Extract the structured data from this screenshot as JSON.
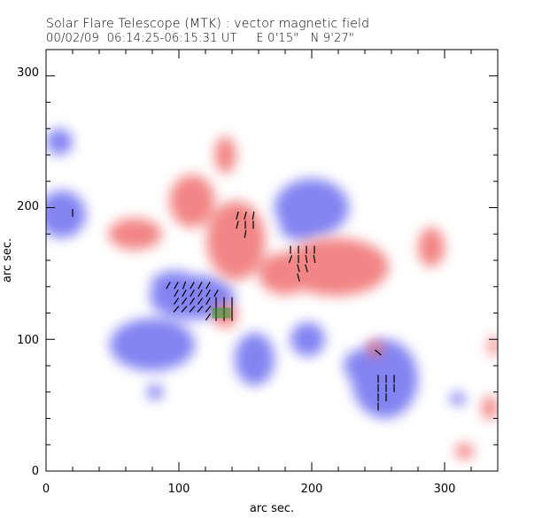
{
  "title": "Solar Flare Telescope (MTK) : vector magnetic field",
  "subtitle": "00/02/09  06:14:25-06:15:31 UT     E 0'15\"   N 9'27\"",
  "chart_data": {
    "type": "heatmap",
    "xlabel": "arc sec.",
    "ylabel": "arc sec.",
    "xlim": [
      0,
      340
    ],
    "ylim": [
      0,
      320
    ],
    "xticks": [
      0,
      100,
      200,
      300
    ],
    "yticks": [
      0,
      100,
      200,
      300
    ],
    "minor_tick_step": 20,
    "grid": false,
    "colors": {
      "positive": "#f07070",
      "negative": "#6e6ef0",
      "vector": "#000000",
      "highlight": "#2a9a2a"
    },
    "positive_regions": [
      {
        "x": 143,
        "y": 175,
        "rx": 22,
        "ry": 30
      },
      {
        "x": 110,
        "y": 205,
        "rx": 17,
        "ry": 20
      },
      {
        "x": 135,
        "y": 240,
        "rx": 8,
        "ry": 14
      },
      {
        "x": 67,
        "y": 180,
        "rx": 20,
        "ry": 12
      },
      {
        "x": 218,
        "y": 155,
        "rx": 40,
        "ry": 22
      },
      {
        "x": 180,
        "y": 150,
        "rx": 20,
        "ry": 16
      },
      {
        "x": 135,
        "y": 118,
        "rx": 9,
        "ry": 9
      },
      {
        "x": 248,
        "y": 93,
        "rx": 6,
        "ry": 6
      },
      {
        "x": 315,
        "y": 15,
        "rx": 7,
        "ry": 6
      },
      {
        "x": 334,
        "y": 48,
        "rx": 6,
        "ry": 9
      },
      {
        "x": 337,
        "y": 95,
        "rx": 4,
        "ry": 8
      },
      {
        "x": 290,
        "y": 170,
        "rx": 10,
        "ry": 15
      }
    ],
    "negative_regions": [
      {
        "x": 200,
        "y": 200,
        "rx": 28,
        "ry": 22
      },
      {
        "x": 192,
        "y": 185,
        "rx": 16,
        "ry": 10
      },
      {
        "x": 110,
        "y": 132,
        "rx": 32,
        "ry": 17
      },
      {
        "x": 97,
        "y": 142,
        "rx": 18,
        "ry": 10
      },
      {
        "x": 80,
        "y": 96,
        "rx": 32,
        "ry": 20
      },
      {
        "x": 197,
        "y": 100,
        "rx": 13,
        "ry": 13
      },
      {
        "x": 255,
        "y": 70,
        "rx": 25,
        "ry": 30
      },
      {
        "x": 236,
        "y": 80,
        "rx": 12,
        "ry": 12
      },
      {
        "x": 157,
        "y": 85,
        "rx": 15,
        "ry": 20
      },
      {
        "x": 12,
        "y": 195,
        "rx": 18,
        "ry": 18
      },
      {
        "x": 10,
        "y": 250,
        "rx": 10,
        "ry": 10
      },
      {
        "x": 82,
        "y": 60,
        "rx": 6,
        "ry": 6
      },
      {
        "x": 310,
        "y": 55,
        "rx": 6,
        "ry": 5
      }
    ],
    "vectors": [
      {
        "x": 20,
        "y": 196,
        "angle": 0
      },
      {
        "x": 144,
        "y": 194,
        "angle": -15
      },
      {
        "x": 150,
        "y": 194,
        "angle": -15
      },
      {
        "x": 156,
        "y": 194,
        "angle": -10
      },
      {
        "x": 144,
        "y": 187,
        "angle": -15
      },
      {
        "x": 150,
        "y": 187,
        "angle": 0
      },
      {
        "x": 156,
        "y": 187,
        "angle": 0
      },
      {
        "x": 150,
        "y": 180,
        "angle": -10
      },
      {
        "x": 184,
        "y": 168,
        "angle": 0
      },
      {
        "x": 190,
        "y": 168,
        "angle": 0
      },
      {
        "x": 196,
        "y": 168,
        "angle": 0
      },
      {
        "x": 202,
        "y": 168,
        "angle": 0
      },
      {
        "x": 184,
        "y": 161,
        "angle": -20
      },
      {
        "x": 190,
        "y": 161,
        "angle": 0
      },
      {
        "x": 196,
        "y": 161,
        "angle": 10
      },
      {
        "x": 202,
        "y": 161,
        "angle": 10
      },
      {
        "x": 190,
        "y": 154,
        "angle": 15
      },
      {
        "x": 196,
        "y": 154,
        "angle": 15
      },
      {
        "x": 190,
        "y": 147,
        "angle": 15
      },
      {
        "x": 92,
        "y": 141,
        "angle": -30
      },
      {
        "x": 98,
        "y": 141,
        "angle": -30
      },
      {
        "x": 104,
        "y": 141,
        "angle": -20
      },
      {
        "x": 110,
        "y": 141,
        "angle": -30
      },
      {
        "x": 116,
        "y": 141,
        "angle": -30
      },
      {
        "x": 122,
        "y": 141,
        "angle": -30
      },
      {
        "x": 98,
        "y": 135,
        "angle": -30
      },
      {
        "x": 104,
        "y": 135,
        "angle": -30
      },
      {
        "x": 110,
        "y": 135,
        "angle": -30
      },
      {
        "x": 116,
        "y": 135,
        "angle": -30
      },
      {
        "x": 122,
        "y": 135,
        "angle": -30
      },
      {
        "x": 128,
        "y": 135,
        "angle": -30
      },
      {
        "x": 98,
        "y": 129,
        "angle": -35
      },
      {
        "x": 104,
        "y": 129,
        "angle": -35
      },
      {
        "x": 110,
        "y": 129,
        "angle": -35
      },
      {
        "x": 116,
        "y": 129,
        "angle": -35
      },
      {
        "x": 122,
        "y": 129,
        "angle": -30
      },
      {
        "x": 128,
        "y": 129,
        "angle": 0
      },
      {
        "x": 134,
        "y": 129,
        "angle": 0
      },
      {
        "x": 140,
        "y": 129,
        "angle": 0
      },
      {
        "x": 98,
        "y": 123,
        "angle": -40
      },
      {
        "x": 104,
        "y": 123,
        "angle": -40
      },
      {
        "x": 110,
        "y": 123,
        "angle": -40
      },
      {
        "x": 116,
        "y": 123,
        "angle": -40
      },
      {
        "x": 122,
        "y": 123,
        "angle": -40
      },
      {
        "x": 128,
        "y": 123,
        "angle": 0
      },
      {
        "x": 134,
        "y": 123,
        "angle": 0
      },
      {
        "x": 140,
        "y": 123,
        "angle": 0
      },
      {
        "x": 122,
        "y": 117,
        "angle": -35
      },
      {
        "x": 128,
        "y": 117,
        "angle": 0
      },
      {
        "x": 134,
        "y": 117,
        "angle": 0
      },
      {
        "x": 140,
        "y": 117,
        "angle": 0
      },
      {
        "x": 250,
        "y": 90,
        "angle": 50
      },
      {
        "x": 250,
        "y": 70,
        "angle": 0
      },
      {
        "x": 256,
        "y": 70,
        "angle": 0
      },
      {
        "x": 262,
        "y": 70,
        "angle": 0
      },
      {
        "x": 250,
        "y": 63,
        "angle": 0
      },
      {
        "x": 256,
        "y": 63,
        "angle": 0
      },
      {
        "x": 262,
        "y": 63,
        "angle": 0
      },
      {
        "x": 250,
        "y": 56,
        "angle": 0
      },
      {
        "x": 256,
        "y": 56,
        "angle": 0
      },
      {
        "x": 250,
        "y": 49,
        "angle": 0
      }
    ]
  }
}
